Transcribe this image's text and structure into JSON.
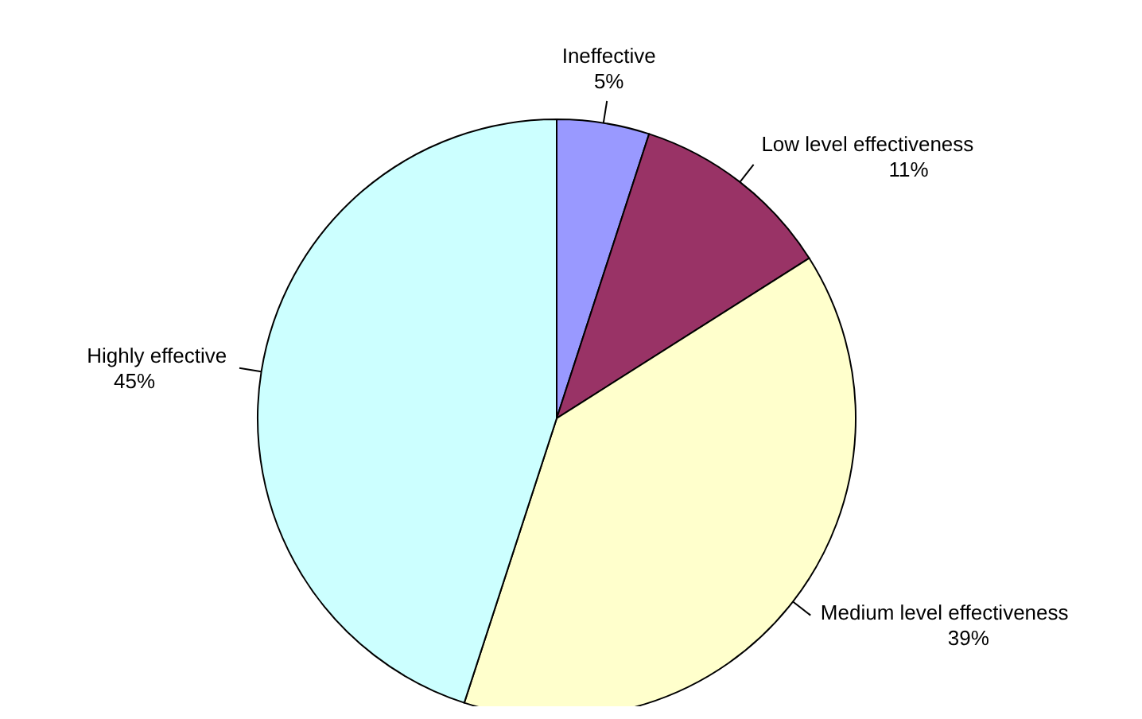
{
  "chart_data": {
    "type": "pie",
    "categories": [
      "Ineffective",
      "Low level effectiveness",
      "Medium level effectiveness",
      "Highly effective"
    ],
    "values": [
      5,
      11,
      39,
      45
    ],
    "colors": [
      "#9999ff",
      "#993366",
      "#ffffcc",
      "#ccffff"
    ],
    "value_labels": [
      "5%",
      "11%",
      "39%",
      "45%"
    ],
    "legend": false
  }
}
